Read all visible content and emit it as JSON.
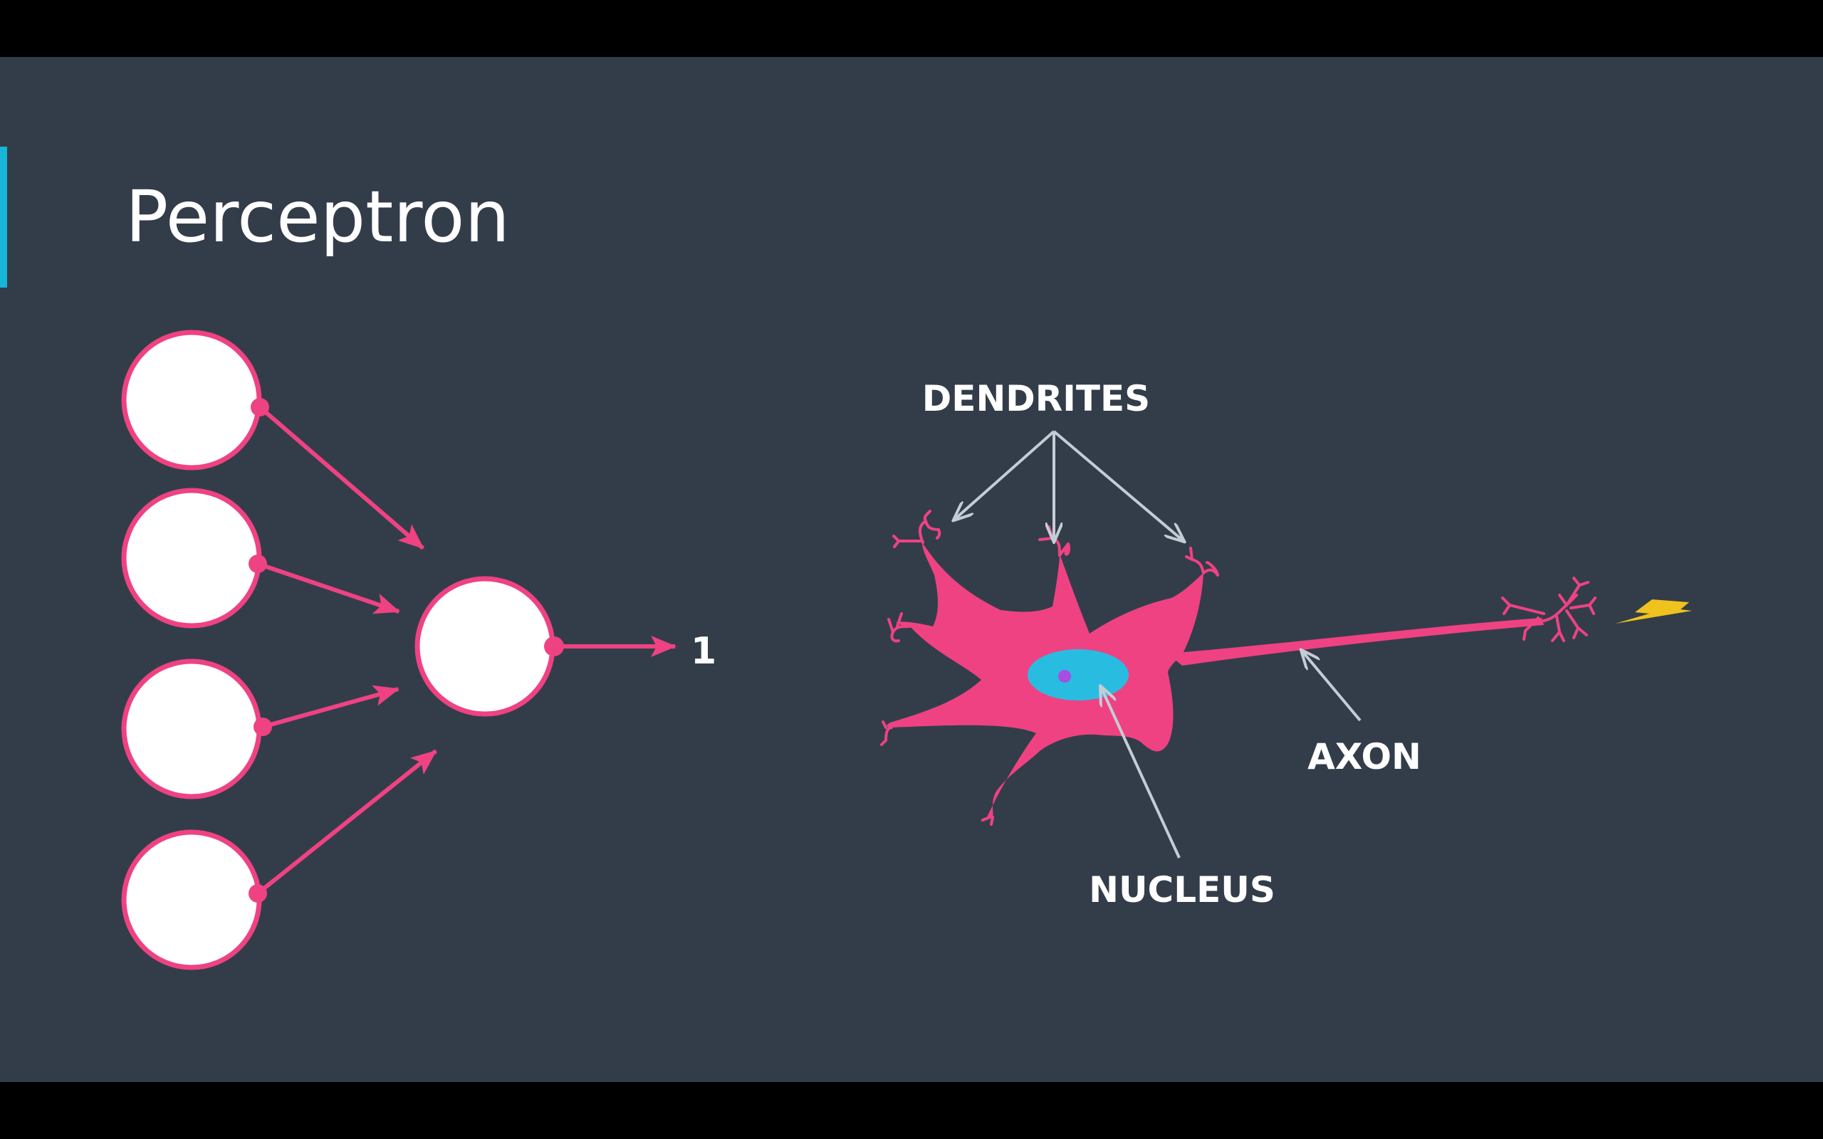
{
  "slide": {
    "title": "Perceptron",
    "colors": {
      "background": "#333d49",
      "letterbox": "#000000",
      "accent": "#17b5d8",
      "pink": "#ef4283",
      "node_fill": "#ffffff",
      "arrow_grey": "#c4cdd6",
      "nucleus": "#28bde0",
      "nucleolus": "#a64fe0",
      "lightning": "#f0c21e"
    }
  },
  "perceptron": {
    "input_count": 4,
    "output_label": "1"
  },
  "neuron": {
    "labels": {
      "dendrites": "DENDRITES",
      "nucleus": "NUCLEUS",
      "axon": "AXON"
    },
    "signal_icon": "lightning-bolt-icon"
  }
}
